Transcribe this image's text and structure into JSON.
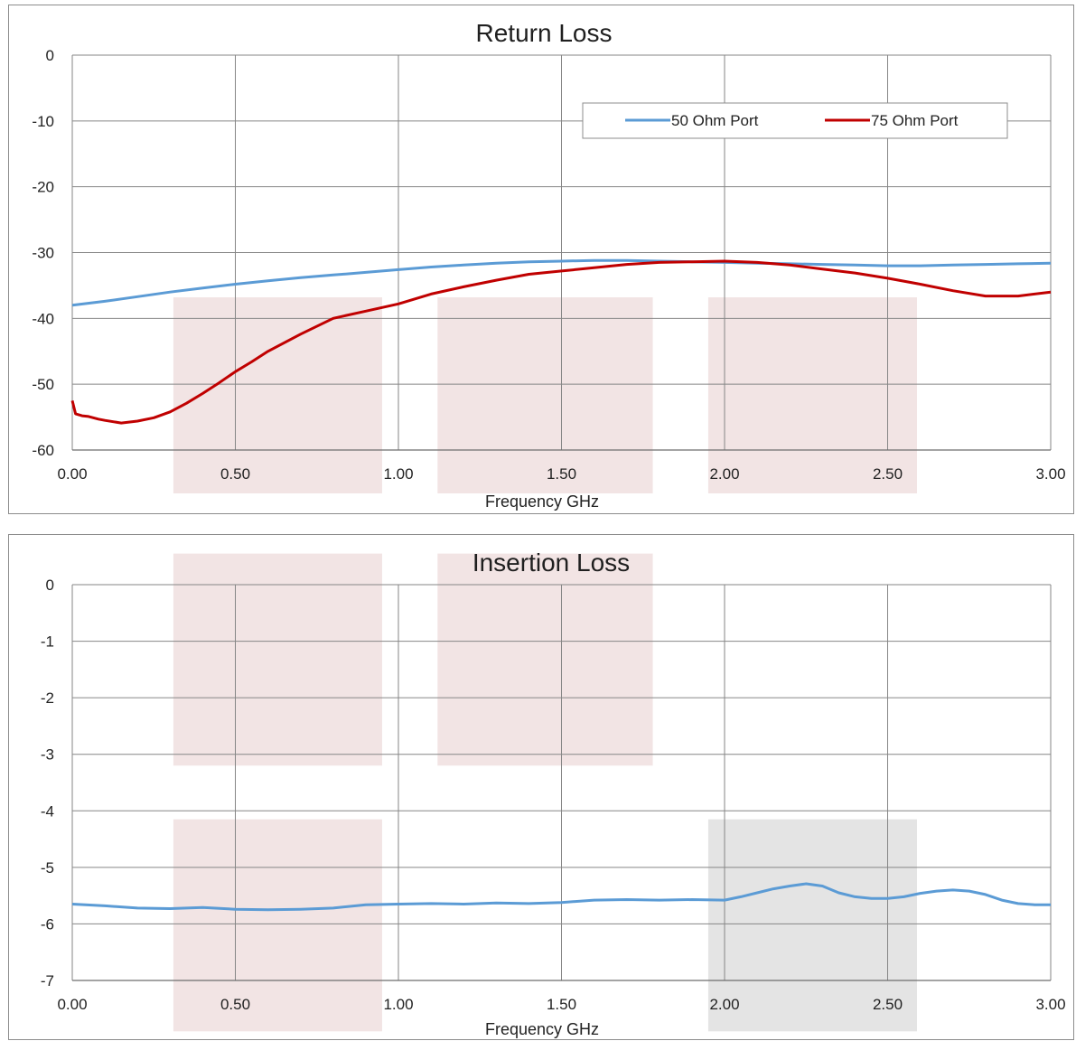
{
  "chart_data": [
    {
      "type": "line",
      "title": "Return Loss",
      "xlabel": "Frequency GHz",
      "ylabel": "",
      "xlim": [
        0,
        3
      ],
      "ylim": [
        -60,
        0
      ],
      "xticks": [
        "0.00",
        "0.50",
        "1.00",
        "1.50",
        "2.00",
        "2.50",
        "3.00"
      ],
      "yticks": [
        "0",
        "-10",
        "-20",
        "-30",
        "-40",
        "-50",
        "-60"
      ],
      "grid": true,
      "legend_position": "top-right",
      "highlight_bands": [
        [
          0.31,
          0.95
        ],
        [
          1.12,
          1.78
        ],
        [
          1.95,
          2.59
        ]
      ],
      "band_color": "#f2e4e4",
      "series": [
        {
          "name": "50 Ohm Port",
          "color": "#5b9bd5",
          "x": [
            0,
            0.1,
            0.2,
            0.3,
            0.4,
            0.5,
            0.6,
            0.7,
            0.8,
            0.9,
            1.0,
            1.1,
            1.2,
            1.3,
            1.4,
            1.5,
            1.6,
            1.7,
            1.8,
            1.9,
            2.0,
            2.1,
            2.2,
            2.3,
            2.4,
            2.5,
            2.6,
            2.7,
            2.8,
            2.9,
            3.0
          ],
          "y": [
            -38.0,
            -37.4,
            -36.7,
            -36.0,
            -35.4,
            -34.8,
            -34.3,
            -33.8,
            -33.4,
            -33.0,
            -32.6,
            -32.2,
            -31.9,
            -31.6,
            -31.4,
            -31.3,
            -31.2,
            -31.2,
            -31.3,
            -31.4,
            -31.5,
            -31.6,
            -31.7,
            -31.8,
            -31.9,
            -32.0,
            -32.0,
            -31.9,
            -31.8,
            -31.7,
            -31.6
          ]
        },
        {
          "name": "75 Ohm Port",
          "color": "#c00000",
          "x": [
            0,
            0.01,
            0.03,
            0.05,
            0.08,
            0.1,
            0.15,
            0.2,
            0.25,
            0.3,
            0.35,
            0.4,
            0.45,
            0.5,
            0.55,
            0.6,
            0.7,
            0.8,
            0.9,
            1.0,
            1.1,
            1.2,
            1.3,
            1.4,
            1.5,
            1.6,
            1.7,
            1.8,
            1.9,
            2.0,
            2.1,
            2.2,
            2.3,
            2.4,
            2.5,
            2.6,
            2.7,
            2.8,
            2.9,
            3.0
          ],
          "y": [
            -52.5,
            -54.5,
            -54.8,
            -54.9,
            -55.3,
            -55.5,
            -55.9,
            -55.6,
            -55.1,
            -54.2,
            -52.9,
            -51.4,
            -49.8,
            -48.1,
            -46.6,
            -45.0,
            -42.4,
            -40.0,
            -38.9,
            -37.8,
            -36.3,
            -35.2,
            -34.2,
            -33.3,
            -32.8,
            -32.3,
            -31.8,
            -31.5,
            -31.4,
            -31.3,
            -31.5,
            -31.9,
            -32.5,
            -33.1,
            -33.9,
            -34.8,
            -35.8,
            -36.6,
            -36.6,
            -36.0
          ]
        }
      ]
    },
    {
      "type": "line",
      "title": "Insertion Loss",
      "xlabel": "Frequency GHz",
      "ylabel": "",
      "xlim": [
        0,
        3
      ],
      "ylim": [
        -7,
        0
      ],
      "xticks": [
        "0.00",
        "0.50",
        "1.00",
        "1.50",
        "2.00",
        "2.50",
        "3.00"
      ],
      "yticks": [
        "0",
        "-1",
        "-2",
        "-3",
        "-4",
        "-5",
        "-6",
        "-7"
      ],
      "grid": true,
      "highlight_regions": [
        {
          "x": [
            0.31,
            0.95
          ],
          "y": [
            -3.2,
            0.55
          ],
          "color": "#f2e4e4"
        },
        {
          "x": [
            1.12,
            1.78
          ],
          "y": [
            -3.2,
            0.55
          ],
          "color": "#f2e4e4"
        },
        {
          "x": [
            0.31,
            0.95
          ],
          "y": [
            -7.9,
            -4.15
          ],
          "color": "#f2e4e4"
        },
        {
          "x": [
            1.95,
            2.59
          ],
          "y": [
            -7.9,
            -4.15
          ],
          "color": "#e4e4e4"
        }
      ],
      "series": [
        {
          "color": "#5b9bd5",
          "x": [
            0,
            0.1,
            0.2,
            0.3,
            0.4,
            0.5,
            0.6,
            0.7,
            0.8,
            0.9,
            1.0,
            1.1,
            1.2,
            1.3,
            1.4,
            1.5,
            1.6,
            1.7,
            1.8,
            1.9,
            2.0,
            2.05,
            2.1,
            2.15,
            2.2,
            2.25,
            2.3,
            2.35,
            2.4,
            2.45,
            2.5,
            2.55,
            2.6,
            2.65,
            2.7,
            2.75,
            2.8,
            2.85,
            2.9,
            2.95,
            3.0
          ],
          "y": [
            -5.65,
            -5.68,
            -5.72,
            -5.73,
            -5.71,
            -5.74,
            -5.75,
            -5.74,
            -5.72,
            -5.66,
            -5.65,
            -5.64,
            -5.65,
            -5.63,
            -5.64,
            -5.62,
            -5.58,
            -5.57,
            -5.58,
            -5.57,
            -5.58,
            -5.52,
            -5.45,
            -5.38,
            -5.33,
            -5.29,
            -5.33,
            -5.45,
            -5.52,
            -5.55,
            -5.55,
            -5.52,
            -5.46,
            -5.42,
            -5.4,
            -5.42,
            -5.48,
            -5.58,
            -5.64,
            -5.66,
            -5.66
          ]
        }
      ]
    }
  ]
}
